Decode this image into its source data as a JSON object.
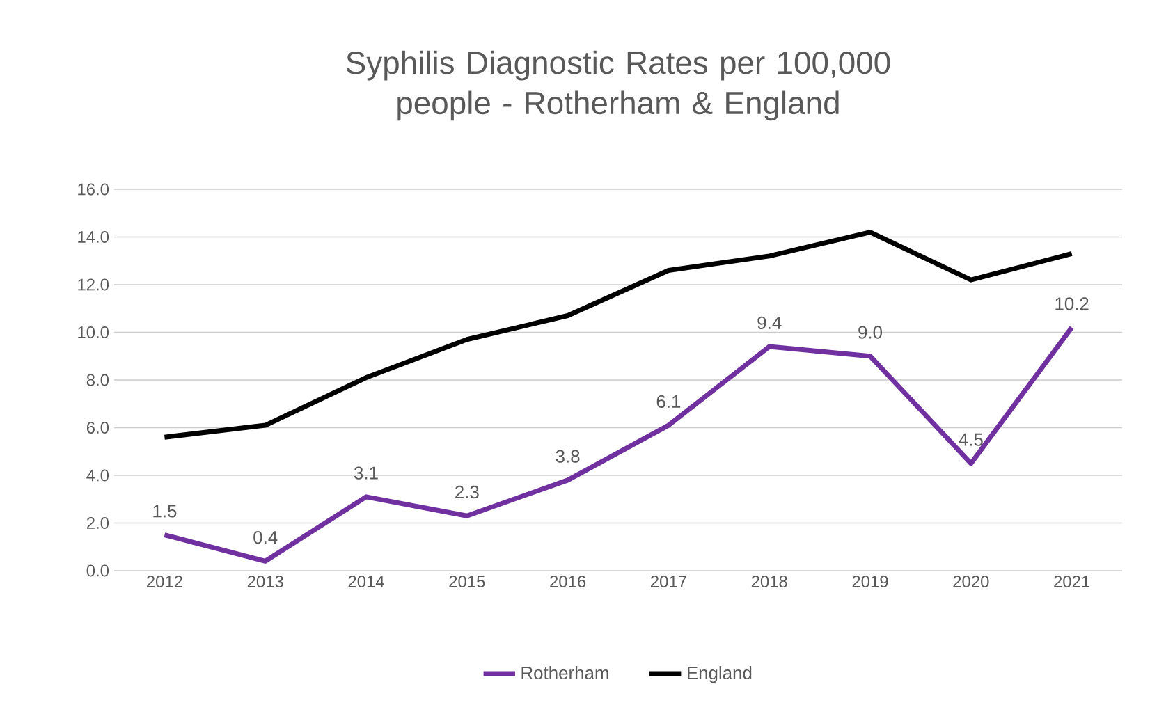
{
  "chart_data": {
    "type": "line",
    "title": "Syphilis Diagnostic Rates per 100,000 people - Rotherham & England",
    "categories": [
      "2012",
      "2013",
      "2014",
      "2015",
      "2016",
      "2017",
      "2018",
      "2019",
      "2020",
      "2021"
    ],
    "series": [
      {
        "name": "Rotherham",
        "color": "#7030a0",
        "values": [
          1.5,
          0.4,
          3.1,
          2.3,
          3.8,
          6.1,
          9.4,
          9.0,
          4.5,
          10.2
        ],
        "value_labels": [
          "1.5",
          "0.4",
          "3.1",
          "2.3",
          "3.8",
          "6.1",
          "9.4",
          "9.0",
          "4.5",
          "10.2"
        ]
      },
      {
        "name": "England",
        "color": "#000000",
        "values": [
          5.6,
          6.1,
          8.1,
          9.7,
          10.7,
          12.6,
          13.2,
          14.2,
          12.2,
          13.3
        ]
      }
    ],
    "ylim": [
      0,
      16
    ],
    "yticks": [
      {
        "value": 0,
        "label": "0.0"
      },
      {
        "value": 2,
        "label": "2.0"
      },
      {
        "value": 4,
        "label": "4.0"
      },
      {
        "value": 6,
        "label": "6.0"
      },
      {
        "value": 8,
        "label": "8.0"
      },
      {
        "value": 10,
        "label": "10.0"
      },
      {
        "value": 12,
        "label": "12.0"
      },
      {
        "value": 14,
        "label": "14.0"
      },
      {
        "value": 16,
        "label": "16.0"
      }
    ],
    "grid": "y",
    "legend": "bottom",
    "marker": "none",
    "line_style": "solid"
  }
}
